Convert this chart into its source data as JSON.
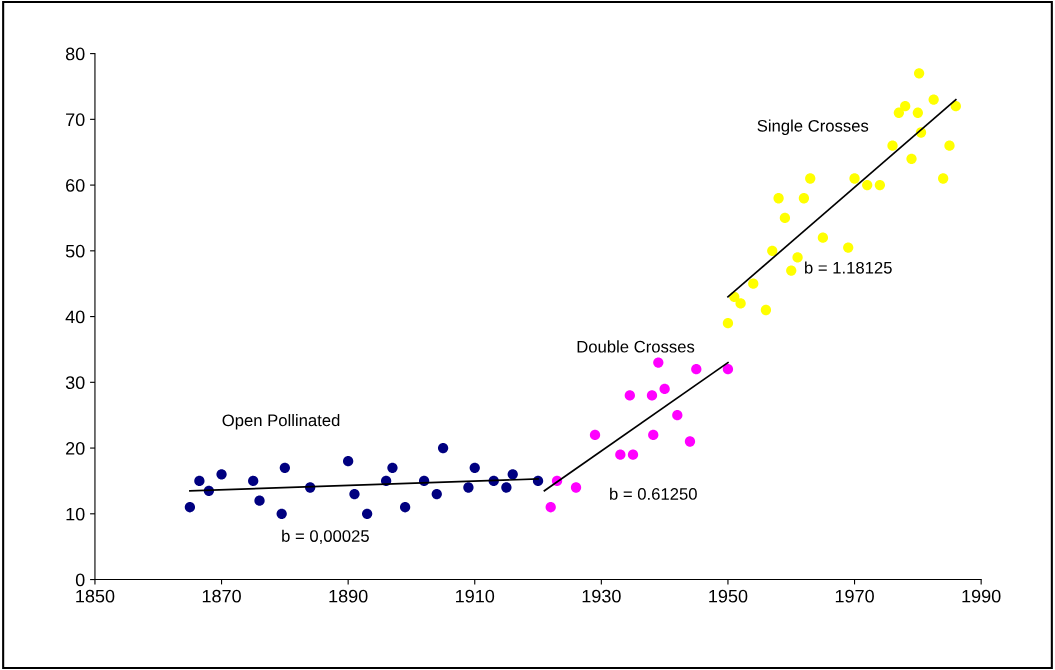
{
  "chart_data": {
    "type": "scatter",
    "series": [
      {
        "color": "#000080",
        "x": [
          1865,
          1866.5,
          1868,
          1870,
          1875,
          1876,
          1880,
          1879.5,
          1884,
          1890,
          1891,
          1893,
          1897,
          1896,
          1899,
          1902,
          1904,
          1905,
          1909,
          1910,
          1913,
          1915,
          1916,
          1920
        ],
        "values": [
          11,
          15,
          13.5,
          16,
          15,
          12,
          17,
          10,
          14,
          18,
          13,
          10,
          17,
          15,
          11,
          15,
          13,
          20,
          14,
          17,
          15,
          14,
          16,
          15
        ]
      },
      {
        "color": "#ff00ff",
        "x": [
          1922,
          1923,
          1926,
          1929,
          1933,
          1934.5,
          1935,
          1938,
          1939,
          1938.2,
          1940,
          1942,
          1944,
          1945,
          1950
        ],
        "values": [
          11,
          15,
          14,
          22,
          19,
          28,
          19,
          28,
          33,
          22,
          29,
          25,
          21,
          32,
          32
        ]
      },
      {
        "color": "#ffff00",
        "x": [
          1950,
          1951,
          1952,
          1954,
          1956,
          1957,
          1958,
          1959,
          1960,
          1961,
          1962,
          1963,
          1965,
          1969,
          1970,
          1972,
          1974,
          1976,
          1977,
          1978,
          1979,
          1980,
          1980.2,
          1980.5,
          1982.5,
          1984,
          1985,
          1986
        ],
        "values": [
          39,
          43,
          42,
          45,
          41,
          50,
          58,
          55,
          47,
          49,
          58,
          61,
          52,
          50.5,
          61,
          60,
          60,
          66,
          71,
          72,
          64,
          71,
          77,
          68,
          73,
          61,
          66,
          72
        ]
      },
      {
        "type": "line",
        "color": "#000000",
        "marker": "none",
        "x": [
          1865,
          1920
        ],
        "values": [
          13.5,
          15.3
        ]
      },
      {
        "type": "line",
        "color": "#000000",
        "marker": "none",
        "x": [
          1921,
          1950
        ],
        "values": [
          13.5,
          33
        ]
      },
      {
        "type": "line",
        "color": "#000000",
        "marker": "none",
        "x": [
          1950,
          1986
        ],
        "values": [
          43,
          73
        ]
      }
    ],
    "annotations": [
      "Open Pollinated",
      "b = 0,00025",
      "Double Crosses",
      "b = 0.61250",
      "Single Crosses",
      "b = 1.18125"
    ],
    "marker": "circle",
    "grid": false,
    "legend": false,
    "xlim": [
      1850,
      1990
    ],
    "xticks": [
      1850,
      1870,
      1890,
      1910,
      1930,
      1950,
      1970,
      1990
    ],
    "ylim": [
      0,
      80
    ],
    "yticks": [
      0,
      10,
      20,
      30,
      40,
      50,
      60,
      70,
      80
    ]
  }
}
